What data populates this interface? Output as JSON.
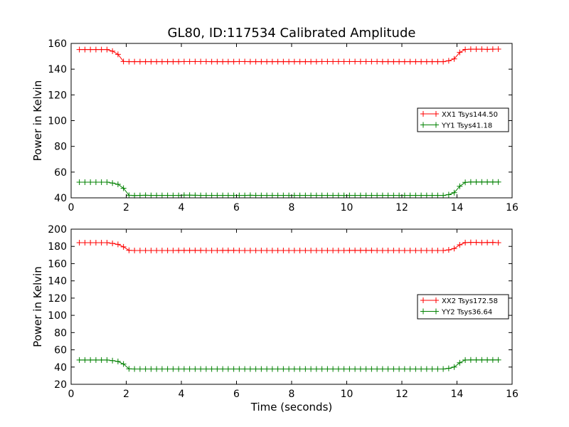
{
  "title": "GL80, ID:117534 Calibrated Amplitude",
  "chart_data": [
    {
      "type": "line",
      "xlabel": "",
      "ylabel": "Power in Kelvin",
      "xlim": [
        0,
        16
      ],
      "ylim": [
        40,
        160
      ],
      "xticks": [
        0,
        2,
        4,
        6,
        8,
        10,
        12,
        14,
        16
      ],
      "yticks": [
        40,
        60,
        80,
        100,
        120,
        140,
        160
      ],
      "grid": false,
      "legend_position": "right",
      "series": [
        {
          "name": "XX1 Tsys144.50",
          "color": "#ff0000",
          "marker": "plus",
          "x": [
            0.3,
            0.5,
            0.7,
            0.9,
            1.1,
            1.3,
            1.5,
            1.7,
            1.9,
            2.1,
            2.3,
            2.5,
            2.7,
            2.9,
            3.1,
            3.3,
            3.5,
            3.7,
            3.9,
            4.1,
            4.3,
            4.5,
            4.7,
            4.9,
            5.1,
            5.3,
            5.5,
            5.7,
            5.9,
            6.1,
            6.3,
            6.5,
            6.7,
            6.9,
            7.1,
            7.3,
            7.5,
            7.7,
            7.9,
            8.1,
            8.3,
            8.5,
            8.7,
            8.9,
            9.1,
            9.3,
            9.5,
            9.7,
            9.9,
            10.1,
            10.3,
            10.5,
            10.7,
            10.9,
            11.1,
            11.3,
            11.5,
            11.7,
            11.9,
            12.1,
            12.3,
            12.5,
            12.7,
            12.9,
            13.1,
            13.3,
            13.5,
            13.7,
            13.9,
            14.1,
            14.3,
            14.5,
            14.7,
            14.9,
            15.1,
            15.3,
            15.5
          ],
          "y": [
            155.2,
            155.2,
            155.2,
            155.2,
            155.2,
            155.2,
            154.0,
            151.5,
            146.0,
            145.8,
            145.8,
            145.8,
            145.8,
            145.8,
            145.8,
            145.8,
            145.8,
            145.8,
            145.8,
            145.9,
            145.9,
            145.9,
            145.9,
            145.9,
            145.8,
            145.8,
            145.8,
            145.8,
            145.8,
            145.9,
            145.9,
            145.8,
            145.8,
            145.8,
            145.8,
            145.8,
            145.8,
            145.8,
            145.8,
            145.8,
            145.8,
            145.8,
            145.8,
            145.8,
            145.9,
            145.9,
            145.9,
            145.9,
            145.9,
            145.9,
            145.9,
            145.9,
            145.9,
            145.9,
            145.9,
            145.8,
            145.8,
            145.8,
            145.8,
            145.8,
            145.8,
            145.8,
            145.8,
            145.8,
            145.8,
            145.8,
            145.8,
            146.5,
            148.0,
            153.0,
            155.3,
            155.5,
            155.5,
            155.5,
            155.4,
            155.5,
            155.6
          ]
        },
        {
          "name": "YY1 Tsys41.18",
          "color": "#008000",
          "marker": "plus",
          "x": [
            0.3,
            0.5,
            0.7,
            0.9,
            1.1,
            1.3,
            1.5,
            1.7,
            1.9,
            2.1,
            2.3,
            2.5,
            2.7,
            2.9,
            3.1,
            3.3,
            3.5,
            3.7,
            3.9,
            4.1,
            4.3,
            4.5,
            4.7,
            4.9,
            5.1,
            5.3,
            5.5,
            5.7,
            5.9,
            6.1,
            6.3,
            6.5,
            6.7,
            6.9,
            7.1,
            7.3,
            7.5,
            7.7,
            7.9,
            8.1,
            8.3,
            8.5,
            8.7,
            8.9,
            9.1,
            9.3,
            9.5,
            9.7,
            9.9,
            10.1,
            10.3,
            10.5,
            10.7,
            10.9,
            11.1,
            11.3,
            11.5,
            11.7,
            11.9,
            12.1,
            12.3,
            12.5,
            12.7,
            12.9,
            13.1,
            13.3,
            13.5,
            13.7,
            13.9,
            14.1,
            14.3,
            14.5,
            14.7,
            14.9,
            15.1,
            15.3,
            15.5
          ],
          "y": [
            52.2,
            52.2,
            52.2,
            52.2,
            52.2,
            52.2,
            51.5,
            50.5,
            47.5,
            42.0,
            41.8,
            41.9,
            42.0,
            41.9,
            41.9,
            41.9,
            41.9,
            41.9,
            41.9,
            42.1,
            42.1,
            42.0,
            41.9,
            41.9,
            41.9,
            41.9,
            41.9,
            41.9,
            41.9,
            41.9,
            41.9,
            42.0,
            41.9,
            41.9,
            41.9,
            41.9,
            41.9,
            41.9,
            41.9,
            41.9,
            41.9,
            41.9,
            41.9,
            41.9,
            41.9,
            41.9,
            41.9,
            41.9,
            41.9,
            41.9,
            41.9,
            41.9,
            41.9,
            41.9,
            41.9,
            41.9,
            41.9,
            41.9,
            41.9,
            41.9,
            41.9,
            41.9,
            41.9,
            41.9,
            41.9,
            41.9,
            41.9,
            42.5,
            44.0,
            49.0,
            52.0,
            52.3,
            52.3,
            52.3,
            52.3,
            52.3,
            52.3
          ]
        }
      ]
    },
    {
      "type": "line",
      "xlabel": "Time (seconds)",
      "ylabel": "Power in Kelvin",
      "xlim": [
        0,
        16
      ],
      "ylim": [
        20,
        200
      ],
      "xticks": [
        0,
        2,
        4,
        6,
        8,
        10,
        12,
        14,
        16
      ],
      "yticks": [
        20,
        40,
        60,
        80,
        100,
        120,
        140,
        160,
        180,
        200
      ],
      "grid": false,
      "legend_position": "right",
      "series": [
        {
          "name": "XX2 Tsys172.58",
          "color": "#ff0000",
          "marker": "plus",
          "x": [
            0.3,
            0.5,
            0.7,
            0.9,
            1.1,
            1.3,
            1.5,
            1.7,
            1.9,
            2.1,
            2.3,
            2.5,
            2.7,
            2.9,
            3.1,
            3.3,
            3.5,
            3.7,
            3.9,
            4.1,
            4.3,
            4.5,
            4.7,
            4.9,
            5.1,
            5.3,
            5.5,
            5.7,
            5.9,
            6.1,
            6.3,
            6.5,
            6.7,
            6.9,
            7.1,
            7.3,
            7.5,
            7.7,
            7.9,
            8.1,
            8.3,
            8.5,
            8.7,
            8.9,
            9.1,
            9.3,
            9.5,
            9.7,
            9.9,
            10.1,
            10.3,
            10.5,
            10.7,
            10.9,
            11.1,
            11.3,
            11.5,
            11.7,
            11.9,
            12.1,
            12.3,
            12.5,
            12.7,
            12.9,
            13.1,
            13.3,
            13.5,
            13.7,
            13.9,
            14.1,
            14.3,
            14.5,
            14.7,
            14.9,
            15.1,
            15.3,
            15.5
          ],
          "y": [
            184.3,
            184.3,
            184.3,
            184.3,
            184.3,
            184.3,
            183.5,
            182.3,
            179.5,
            175.4,
            175.2,
            175.2,
            175.2,
            175.2,
            175.2,
            175.2,
            175.2,
            175.2,
            175.3,
            175.3,
            175.3,
            175.3,
            175.3,
            175.2,
            175.2,
            175.2,
            175.3,
            175.3,
            175.3,
            175.2,
            175.2,
            175.2,
            175.2,
            175.2,
            175.2,
            175.2,
            175.2,
            175.2,
            175.2,
            175.2,
            175.2,
            175.2,
            175.2,
            175.2,
            175.2,
            175.2,
            175.2,
            175.2,
            175.2,
            175.3,
            175.3,
            175.3,
            175.3,
            175.3,
            175.2,
            175.2,
            175.2,
            175.2,
            175.2,
            175.2,
            175.2,
            175.2,
            175.2,
            175.2,
            175.2,
            175.2,
            175.2,
            176.0,
            177.5,
            181.8,
            184.4,
            184.6,
            184.6,
            184.4,
            184.5,
            184.6,
            184.3
          ]
        },
        {
          "name": "YY2 Tsys36.64",
          "color": "#008000",
          "marker": "plus",
          "x": [
            0.3,
            0.5,
            0.7,
            0.9,
            1.1,
            1.3,
            1.5,
            1.7,
            1.9,
            2.1,
            2.3,
            2.5,
            2.7,
            2.9,
            3.1,
            3.3,
            3.5,
            3.7,
            3.9,
            4.1,
            4.3,
            4.5,
            4.7,
            4.9,
            5.1,
            5.3,
            5.5,
            5.7,
            5.9,
            6.1,
            6.3,
            6.5,
            6.7,
            6.9,
            7.1,
            7.3,
            7.5,
            7.7,
            7.9,
            8.1,
            8.3,
            8.5,
            8.7,
            8.9,
            9.1,
            9.3,
            9.5,
            9.7,
            9.9,
            10.1,
            10.3,
            10.5,
            10.7,
            10.9,
            11.1,
            11.3,
            11.5,
            11.7,
            11.9,
            12.1,
            12.3,
            12.5,
            12.7,
            12.9,
            13.1,
            13.3,
            13.5,
            13.7,
            13.9,
            14.1,
            14.3,
            14.5,
            14.7,
            14.9,
            15.1,
            15.3,
            15.5
          ],
          "y": [
            48.2,
            48.2,
            48.2,
            48.2,
            48.2,
            48.2,
            47.5,
            46.5,
            43.5,
            38.0,
            37.8,
            37.8,
            37.8,
            37.8,
            37.8,
            37.8,
            37.8,
            37.8,
            37.8,
            37.8,
            37.8,
            37.8,
            37.8,
            37.8,
            37.8,
            37.8,
            37.8,
            37.8,
            37.8,
            37.8,
            37.8,
            37.8,
            37.8,
            37.8,
            37.8,
            37.8,
            37.8,
            37.8,
            37.8,
            37.8,
            37.8,
            37.8,
            37.8,
            37.8,
            37.8,
            37.8,
            37.8,
            37.8,
            37.8,
            37.8,
            37.8,
            37.8,
            37.8,
            37.8,
            37.8,
            37.8,
            37.8,
            37.8,
            37.8,
            37.8,
            37.8,
            37.8,
            37.8,
            37.8,
            37.8,
            37.8,
            37.8,
            38.5,
            40.0,
            45.0,
            48.2,
            48.3,
            48.3,
            48.3,
            48.3,
            48.3,
            48.3
          ]
        }
      ]
    }
  ]
}
